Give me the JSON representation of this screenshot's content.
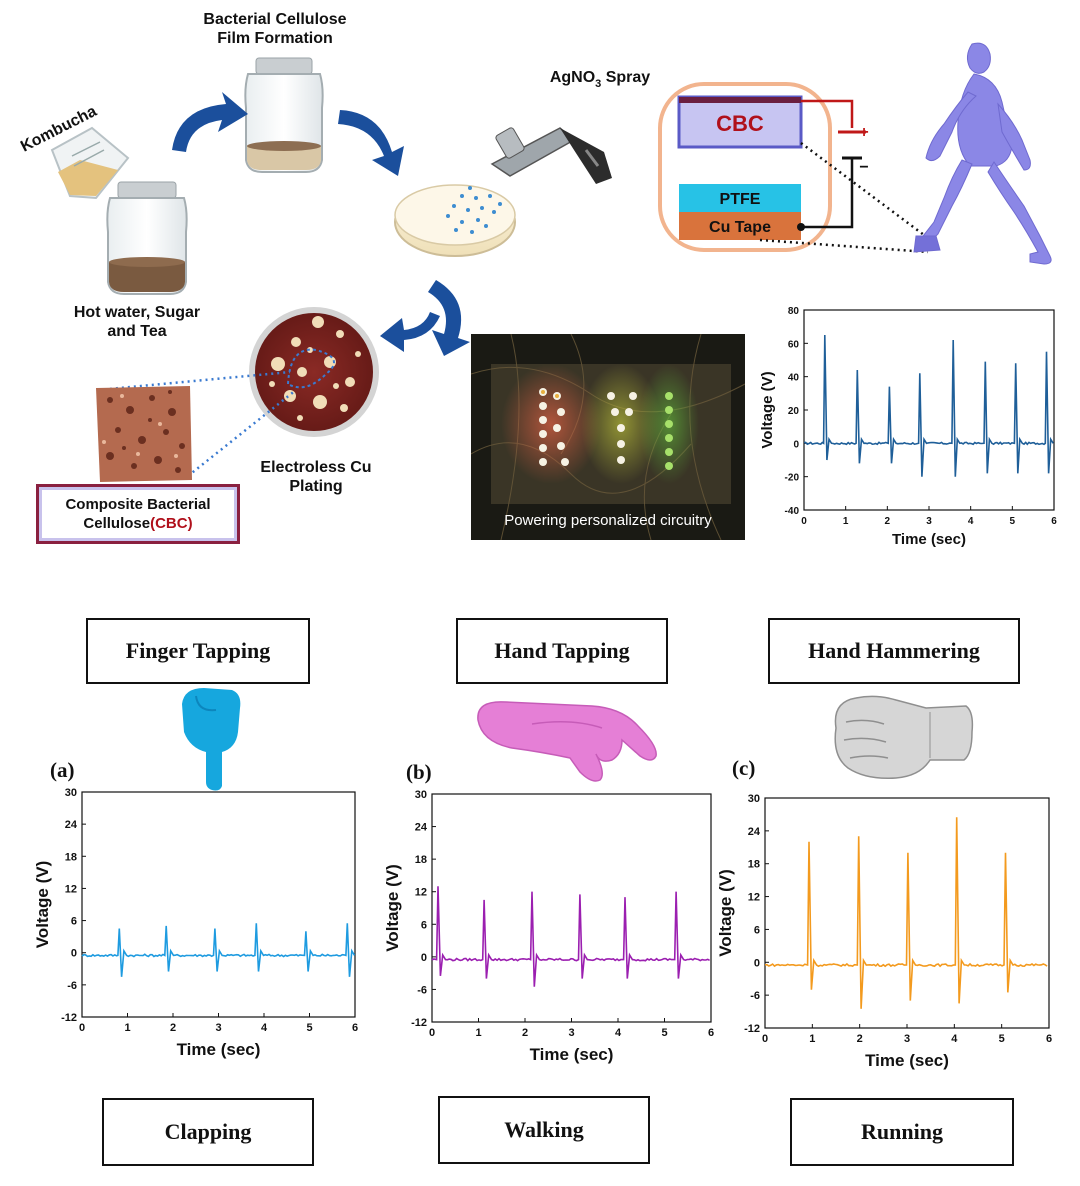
{
  "fabrication": {
    "kombucha": "Kombucha",
    "jar_top": "Bacterial Cellulose\nFilm Formation",
    "jar_bottom": "Hot water, Sugar\nand Tea",
    "spray_prefix": "AgNO",
    "spray_sub": "3",
    "spray_suffix": " Spray",
    "plating": "Electroless Cu\nPlating",
    "cbc_box_prefix": "Composite Bacterial\nCellulose",
    "cbc_box_highlight": "(CBC)"
  },
  "device": {
    "cbc": "CBC",
    "ptfe": "PTFE",
    "cu_tape": "Cu Tape",
    "plus": "+",
    "minus": "−"
  },
  "photo_caption": "Powering personalized circuitry",
  "labels": {
    "finger_tapping": "Finger Tapping",
    "hand_tapping": "Hand Tapping",
    "hand_hammering": "Hand Hammering",
    "clapping": "Clapping",
    "walking": "Walking",
    "running": "Running",
    "panel_a": "(a)",
    "panel_b": "(b)",
    "panel_c": "(c)"
  },
  "colors": {
    "walking_top": "#1f5f99",
    "panel_a": "#1e9be0",
    "panel_b": "#9b1fb0",
    "panel_c": "#f39a1e",
    "arrow": "#1b4f9c",
    "cbc_red": "#b0101b"
  },
  "chart_data": [
    {
      "id": "walking-top",
      "type": "line",
      "xlabel": "Time (sec)",
      "ylabel": "Voltage (V)",
      "xlim": [
        0,
        6
      ],
      "ylim": [
        -40,
        80
      ],
      "xticks": [
        0,
        1,
        2,
        3,
        4,
        5,
        6
      ],
      "yticks": [
        -40,
        -20,
        0,
        20,
        40,
        60,
        80
      ],
      "baseline": 0,
      "peaks": [
        {
          "x": 0.5,
          "y": 65,
          "neg": -10
        },
        {
          "x": 1.28,
          "y": 44,
          "neg": -12
        },
        {
          "x": 2.05,
          "y": 34,
          "neg": -12
        },
        {
          "x": 2.78,
          "y": 42,
          "neg": -20
        },
        {
          "x": 3.58,
          "y": 62,
          "neg": -20
        },
        {
          "x": 4.35,
          "y": 49,
          "neg": -18
        },
        {
          "x": 5.08,
          "y": 48,
          "neg": -18
        },
        {
          "x": 5.82,
          "y": 55,
          "neg": -18
        }
      ]
    },
    {
      "id": "panel-a",
      "type": "line",
      "xlabel": "Time (sec)",
      "ylabel": "Voltage (V)",
      "xlim": [
        0,
        6
      ],
      "ylim": [
        -12,
        30
      ],
      "xticks": [
        0,
        1,
        2,
        3,
        4,
        5,
        6
      ],
      "yticks": [
        -12,
        -6,
        0,
        6,
        12,
        18,
        24,
        30
      ],
      "baseline": -0.5,
      "peaks": [
        {
          "x": 0.82,
          "y": 4.5,
          "neg": -4.5
        },
        {
          "x": 1.85,
          "y": 5,
          "neg": -3.5
        },
        {
          "x": 2.92,
          "y": 4.5,
          "neg": -3.5
        },
        {
          "x": 3.83,
          "y": 5.5,
          "neg": -3.5
        },
        {
          "x": 4.92,
          "y": 4,
          "neg": -3.5
        },
        {
          "x": 5.83,
          "y": 5.5,
          "neg": -4.5
        }
      ]
    },
    {
      "id": "panel-b",
      "type": "line",
      "xlabel": "Time (sec)",
      "ylabel": "Voltage (V)",
      "xlim": [
        0,
        6
      ],
      "ylim": [
        -12,
        30
      ],
      "xticks": [
        0,
        1,
        2,
        3,
        4,
        5,
        6
      ],
      "yticks": [
        -12,
        -6,
        0,
        6,
        12,
        18,
        24,
        30
      ],
      "baseline": -0.5,
      "peaks": [
        {
          "x": 0.13,
          "y": 13,
          "neg": -3.5
        },
        {
          "x": 1.12,
          "y": 10.5,
          "neg": -4
        },
        {
          "x": 2.15,
          "y": 12,
          "neg": -5.5
        },
        {
          "x": 3.18,
          "y": 11.5,
          "neg": -4
        },
        {
          "x": 4.15,
          "y": 11,
          "neg": -4
        },
        {
          "x": 5.25,
          "y": 12,
          "neg": -4
        }
      ]
    },
    {
      "id": "panel-c",
      "type": "line",
      "xlabel": "Time (sec)",
      "ylabel": "Voltage (V)",
      "xlim": [
        0,
        6
      ],
      "ylim": [
        -12,
        30
      ],
      "xticks": [
        0,
        1,
        2,
        3,
        4,
        5,
        6
      ],
      "yticks": [
        -12,
        -6,
        0,
        6,
        12,
        18,
        24,
        30
      ],
      "baseline": -0.5,
      "peaks": [
        {
          "x": 0.93,
          "y": 22,
          "neg": -5
        },
        {
          "x": 1.98,
          "y": 23,
          "neg": -8.5
        },
        {
          "x": 3.02,
          "y": 20,
          "neg": -7
        },
        {
          "x": 4.05,
          "y": 26.5,
          "neg": -7.5
        },
        {
          "x": 5.08,
          "y": 20,
          "neg": -5.5
        }
      ]
    }
  ]
}
